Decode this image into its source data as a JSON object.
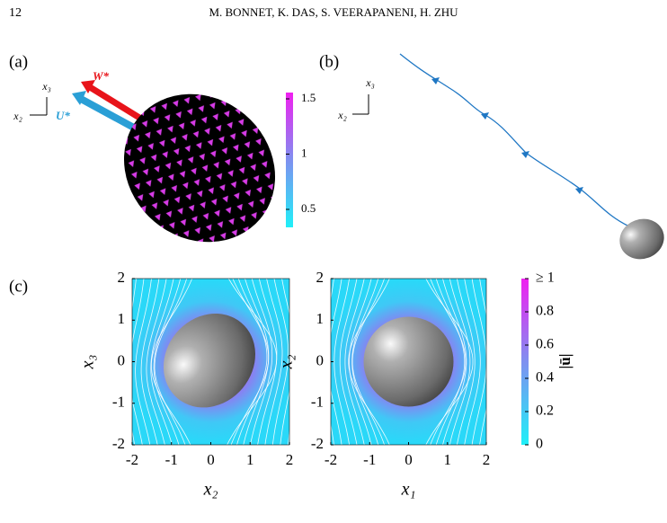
{
  "header": {
    "page_number": "12",
    "authors": "M. BONNET, K. DAS, S. VEERAPANENI, H. ZHU"
  },
  "figure": {
    "panel_a": {
      "label": "(a)",
      "axis_labels": [
        "x₃",
        "x₂"
      ],
      "arrows": [
        "W*",
        "U*"
      ],
      "colorbar_ticks": [
        1.5,
        1,
        0.5
      ]
    },
    "panel_b": {
      "label": "(b)",
      "axis_labels": [
        "x₃",
        "x₂"
      ]
    },
    "panel_c": {
      "label": "(c)",
      "plots": [
        {
          "xlabel": "x₂",
          "ylabel": "x₃",
          "xticks": [
            -2,
            -1,
            0,
            1,
            2
          ],
          "yticks": [
            -2,
            -1,
            0,
            1,
            2
          ]
        },
        {
          "xlabel": "x₁",
          "ylabel": "x₂",
          "xticks": [
            -2,
            -1,
            0,
            1,
            2
          ],
          "yticks": [
            -2,
            -1,
            0,
            1,
            2
          ]
        }
      ],
      "colorbar_label": "|ū|",
      "colorbar_ticks": [
        {
          "value": 1,
          "label": "≥ 1"
        },
        0.8,
        0.6,
        0.4,
        0.2,
        0
      ]
    }
  }
}
